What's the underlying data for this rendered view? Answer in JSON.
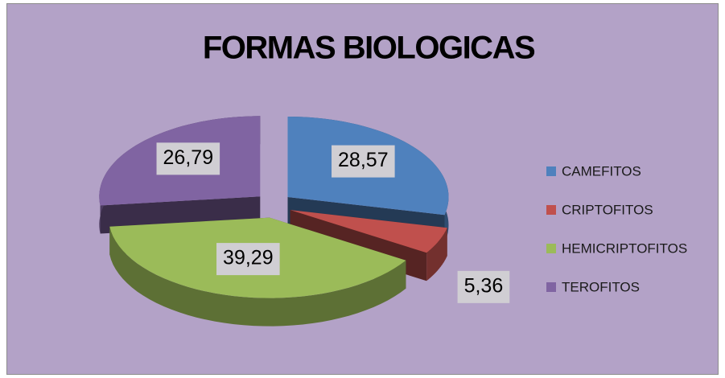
{
  "chart_data": {
    "type": "pie3d",
    "title": "FORMAS BIOLOGICAS",
    "categories": [
      "CAMEFITOS",
      "CRIPTOFITOS",
      "HEMICRIPTOFITOS",
      "TEROFITOS"
    ],
    "values": [
      28.57,
      5.36,
      39.29,
      26.79
    ],
    "value_labels": [
      "28,57",
      "5,36",
      "39,29",
      "26,79"
    ],
    "colors": [
      "#4f81bd",
      "#c0504d",
      "#9bbb59",
      "#8064a2"
    ],
    "legend": "right"
  }
}
